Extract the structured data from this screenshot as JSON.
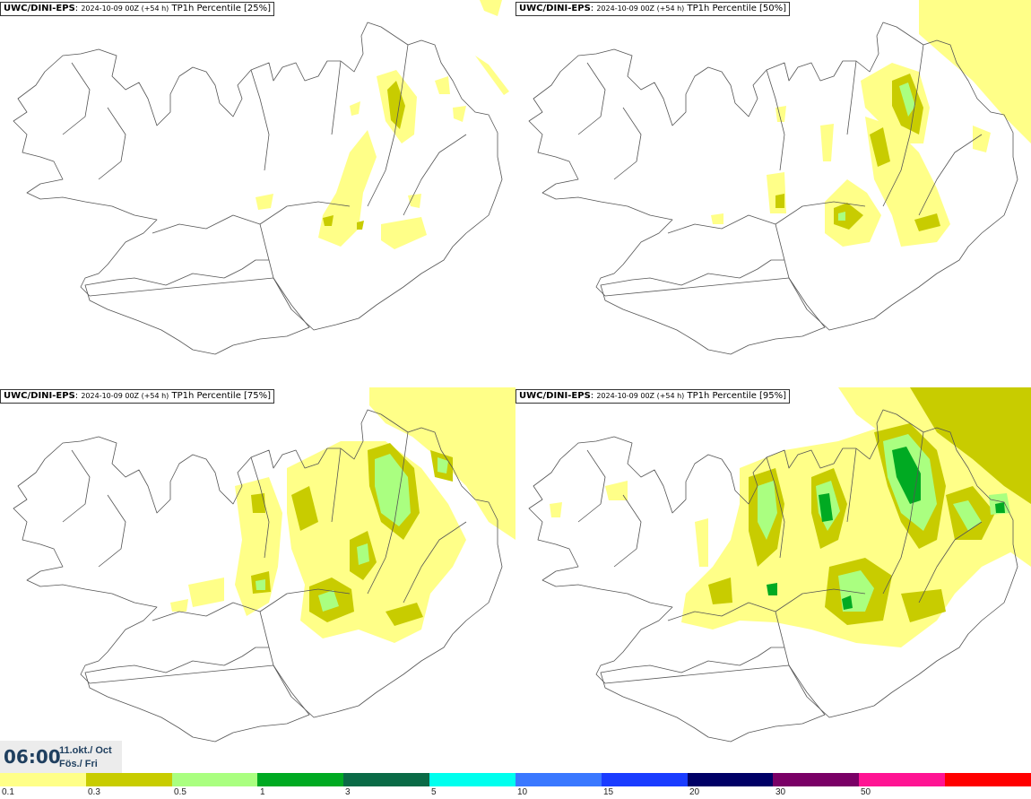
{
  "panels": [
    {
      "model": "UWC/DINI-EPS",
      "run": "2024-10-09 00Z (+54 h)",
      "product": "TP1h Percentile [25%]"
    },
    {
      "model": "UWC/DINI-EPS",
      "run": "2024-10-09 00Z (+54 h)",
      "product": "TP1h Percentile [50%]"
    },
    {
      "model": "UWC/DINI-EPS",
      "run": "2024-10-09 00Z (+54 h)",
      "product": "TP1h Percentile [75%]"
    },
    {
      "model": "UWC/DINI-EPS",
      "run": "2024-10-09 00Z (+54 h)",
      "product": "TP1h Percentile [95%]"
    }
  ],
  "valid_time": {
    "time": "06:00",
    "date": "11.okt./ Oct",
    "day": "Fös./ Fri"
  },
  "legend": {
    "labels": [
      "0.1",
      "0.3",
      "0.5",
      "1",
      "3",
      "5",
      "10",
      "15",
      "20",
      "30",
      "50"
    ],
    "colors": [
      "#ffff88",
      "#c8cc00",
      "#aaff80",
      "#00aa22",
      "#0a6a46",
      "#00ffee",
      "#3a78ff",
      "#1a3cff",
      "#000066",
      "#7a0066",
      "#ff1493",
      "#ff0000"
    ]
  },
  "fields": {
    "c1": "#ffff88",
    "c2": "#c8cc00",
    "c3": "#aaff80",
    "c4": "#00aa22"
  }
}
